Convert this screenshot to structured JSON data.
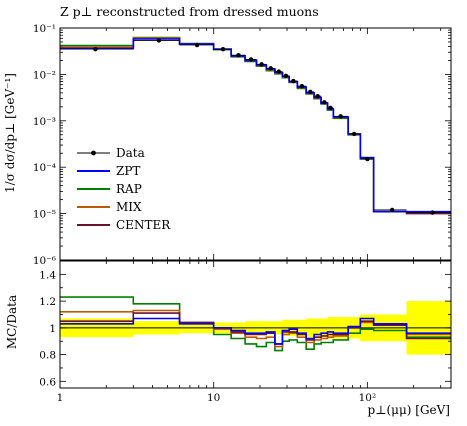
{
  "chart_data": [
    {
      "type": "line",
      "title": "Z p⊥ reconstructed from dressed muons",
      "ylabel": "1/σ dσ/dp⊥ [GeV⁻¹]",
      "xscale": "log",
      "yscale": "log",
      "xlim": [
        1,
        350
      ],
      "ylim": [
        1e-06,
        0.1
      ],
      "x_ticks": [
        "1",
        "10",
        "10²"
      ],
      "y_ticks": [
        "10⁻⁶",
        "10⁻⁵",
        "10⁻⁴",
        "10⁻³",
        "10⁻²",
        "10⁻¹"
      ],
      "legend_position": "left",
      "bin_edges": [
        1,
        3,
        6,
        10,
        13,
        16,
        19,
        22,
        25,
        28,
        31,
        35,
        40,
        45,
        50,
        55,
        60,
        75,
        90,
        110,
        180,
        350
      ],
      "data": {
        "name": "Data",
        "x": [
          1.7,
          4.4,
          7.8,
          11.5,
          14.5,
          17.5,
          20.5,
          23.5,
          26.5,
          29.5,
          33.0,
          37.5,
          42.5,
          47.5,
          52.5,
          57.5,
          67.0,
          82.0,
          100.0,
          145.0,
          265.0
        ],
        "y": [
          0.035,
          0.054,
          0.043,
          0.035,
          0.026,
          0.021,
          0.0165,
          0.0135,
          0.0115,
          0.0093,
          0.0072,
          0.0056,
          0.0042,
          0.0034,
          0.0025,
          0.0019,
          0.00125,
          0.00052,
          0.00015,
          1.2e-05,
          1.05e-05
        ]
      },
      "series": [
        {
          "name": "ZPT",
          "color": "#0000ff",
          "values": [
            0.036,
            0.058,
            0.045,
            0.035,
            0.025,
            0.02,
            0.016,
            0.013,
            0.011,
            0.009,
            0.007,
            0.0053,
            0.004,
            0.0032,
            0.0024,
            0.0018,
            0.0012,
            0.00052,
            0.00016,
            1.1e-05,
            1.1e-05
          ]
        },
        {
          "name": "RAP",
          "color": "#008000",
          "values": [
            0.042,
            0.062,
            0.046,
            0.034,
            0.024,
            0.019,
            0.015,
            0.012,
            0.0103,
            0.0085,
            0.0067,
            0.005,
            0.0038,
            0.003,
            0.0023,
            0.0017,
            0.00113,
            0.0005,
            0.00015,
            1.1e-05,
            1.05e-05
          ]
        },
        {
          "name": "MIX",
          "color": "#c05a00",
          "values": [
            0.039,
            0.061,
            0.045,
            0.035,
            0.025,
            0.02,
            0.0155,
            0.0125,
            0.0107,
            0.0088,
            0.0069,
            0.0052,
            0.0039,
            0.0031,
            0.0024,
            0.0018,
            0.00118,
            0.00052,
            0.00016,
            1.1e-05,
            1.08e-05
          ]
        },
        {
          "name": "CENTER",
          "color": "#6a1030",
          "values": [
            0.037,
            0.06,
            0.045,
            0.035,
            0.025,
            0.02,
            0.0158,
            0.0128,
            0.0108,
            0.0089,
            0.0069,
            0.0052,
            0.004,
            0.0031,
            0.0024,
            0.0018,
            0.00119,
            0.00052,
            0.00016,
            1.1e-05,
            1e-05
          ]
        }
      ]
    },
    {
      "type": "line",
      "ylabel": "MC/Data",
      "xlabel": "p⊥(μμ) [GeV]",
      "xscale": "log",
      "xlim": [
        1,
        350
      ],
      "ylim": [
        0.55,
        1.5
      ],
      "x_ticks": [
        "1",
        "10",
        "10²"
      ],
      "y_ticks": [
        "0.6",
        "0.8",
        "1",
        "1.2",
        "1.4"
      ],
      "band": {
        "color": "#ffff00",
        "lower": [
          0.93,
          0.95,
          0.96,
          0.96,
          0.96,
          0.95,
          0.95,
          0.95,
          0.95,
          0.94,
          0.94,
          0.94,
          0.93,
          0.93,
          0.93,
          0.92,
          0.92,
          0.92,
          0.9,
          0.9,
          0.8
        ],
        "upper": [
          1.07,
          1.05,
          1.04,
          1.04,
          1.04,
          1.05,
          1.05,
          1.05,
          1.05,
          1.06,
          1.06,
          1.06,
          1.07,
          1.07,
          1.07,
          1.08,
          1.08,
          1.08,
          1.1,
          1.1,
          1.2
        ]
      },
      "series": [
        {
          "name": "ZPT",
          "color": "#0000ff",
          "values": [
            1.03,
            1.07,
            1.03,
            1.0,
            0.98,
            0.96,
            0.96,
            0.97,
            0.88,
            0.98,
            0.99,
            0.96,
            0.92,
            0.95,
            0.96,
            0.97,
            0.96,
            1.01,
            1.07,
            1.03,
            0.96
          ]
        },
        {
          "name": "RAP",
          "color": "#008000",
          "values": [
            1.23,
            1.18,
            1.04,
            0.95,
            0.92,
            0.88,
            0.86,
            0.89,
            0.83,
            0.9,
            0.91,
            0.89,
            0.84,
            0.88,
            0.89,
            0.89,
            0.91,
            0.96,
            0.99,
            0.98,
            0.93
          ]
        },
        {
          "name": "MIX",
          "color": "#c05a00",
          "values": [
            1.12,
            1.13,
            1.04,
            0.99,
            0.96,
            0.93,
            0.92,
            0.93,
            0.86,
            0.95,
            0.96,
            0.93,
            0.89,
            0.91,
            0.92,
            0.93,
            0.94,
            1.0,
            1.04,
            1.02,
            0.95
          ]
        },
        {
          "name": "CENTER",
          "color": "#6a1030",
          "values": [
            1.05,
            1.11,
            1.04,
            1.0,
            0.97,
            0.95,
            0.95,
            0.96,
            0.88,
            0.97,
            0.97,
            0.95,
            0.91,
            0.93,
            0.94,
            0.95,
            0.95,
            1.0,
            1.05,
            1.02,
            0.92
          ]
        }
      ]
    }
  ]
}
